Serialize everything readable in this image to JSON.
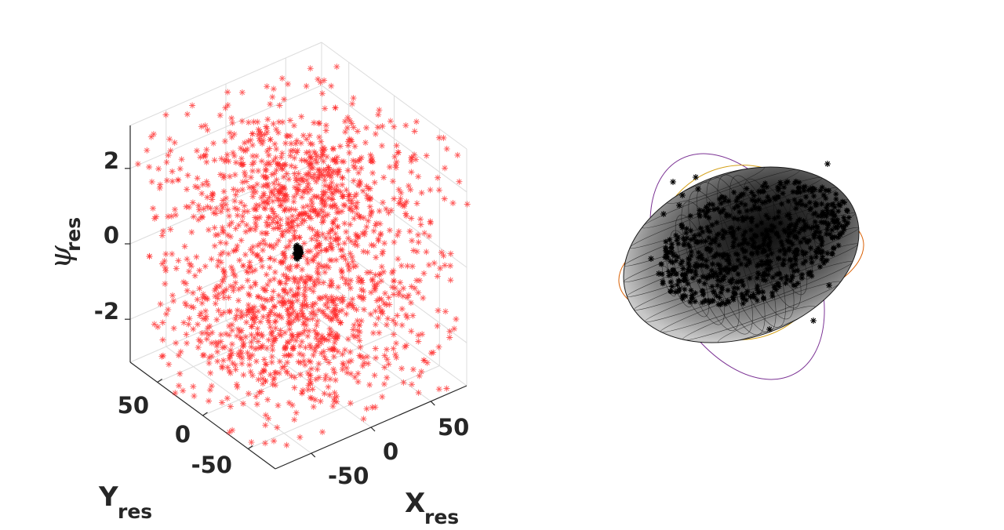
{
  "chart_data": [
    {
      "type": "scatter",
      "projection": "3d",
      "title": "",
      "xlabel": "X",
      "xlabel_sub": "res",
      "ylabel": "Y",
      "ylabel_sub": "res",
      "zlabel_symbol": "ψ",
      "zlabel_sub": "res",
      "x_ticks": [
        "-50",
        "0",
        "50"
      ],
      "y_ticks": [
        "50",
        "0",
        "-50"
      ],
      "z_ticks": [
        "2",
        "0",
        "-2"
      ],
      "xlim": [
        -80,
        80
      ],
      "ylim": [
        -80,
        80
      ],
      "zlim": [
        -3.14,
        3.14
      ],
      "grid": true,
      "series": [
        {
          "marker": "asterisk",
          "color": "#ff0000",
          "count_estimate": 2000,
          "distribution": "uniform spread over box"
        },
        {
          "marker": "asterisk",
          "color": "#000000",
          "count_estimate": 100,
          "distribution": "tight cluster near origin"
        }
      ]
    },
    {
      "type": "scatter",
      "projection": "3d",
      "title": "",
      "axes_visible": false,
      "surface": {
        "kind": "ellipsoid",
        "color": "#808080",
        "mesh_color": "#000000"
      },
      "outline_ellipses": [
        "#7b3294",
        "#d4a017",
        "#d95f02"
      ],
      "series": [
        {
          "marker": "asterisk",
          "color": "#000000",
          "count_estimate": 1500
        }
      ]
    }
  ]
}
